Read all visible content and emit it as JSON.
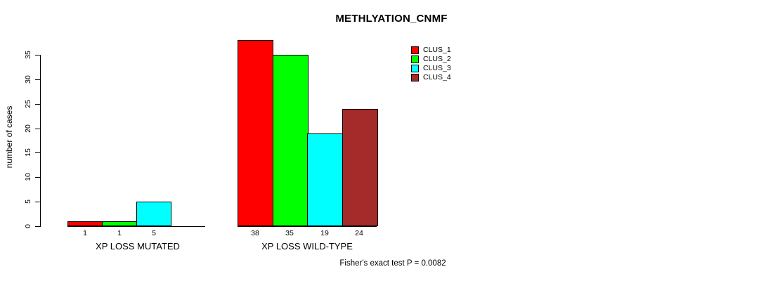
{
  "chart_data": {
    "type": "bar",
    "title": "METHLYATION_CNMF",
    "xlabel": "",
    "ylabel": "number of cases",
    "ylim": [
      0,
      35
    ],
    "y_ticks": [
      0,
      5,
      10,
      15,
      20,
      25,
      30,
      35
    ],
    "grid": false,
    "legend_position": "top-right",
    "categories": [
      "XP LOSS MUTATED",
      "XP LOSS WILD-TYPE"
    ],
    "series": [
      {
        "name": "CLUS_1",
        "color": "#FF0000",
        "values": [
          1,
          38
        ]
      },
      {
        "name": "CLUS_2",
        "color": "#00FF00",
        "values": [
          1,
          35
        ]
      },
      {
        "name": "CLUS_3",
        "color": "#00FFFF",
        "values": [
          5,
          19
        ]
      },
      {
        "name": "CLUS_4",
        "color": "#A52A2A",
        "values": [
          0,
          24
        ]
      }
    ],
    "bar_labels": [
      [
        "1",
        "1",
        "5",
        ""
      ],
      [
        "38",
        "35",
        "19",
        "24"
      ]
    ],
    "annotation": "Fisher's exact test P = 0.0082"
  },
  "icons": {
    "legend_swatch": "color-square-icon"
  }
}
